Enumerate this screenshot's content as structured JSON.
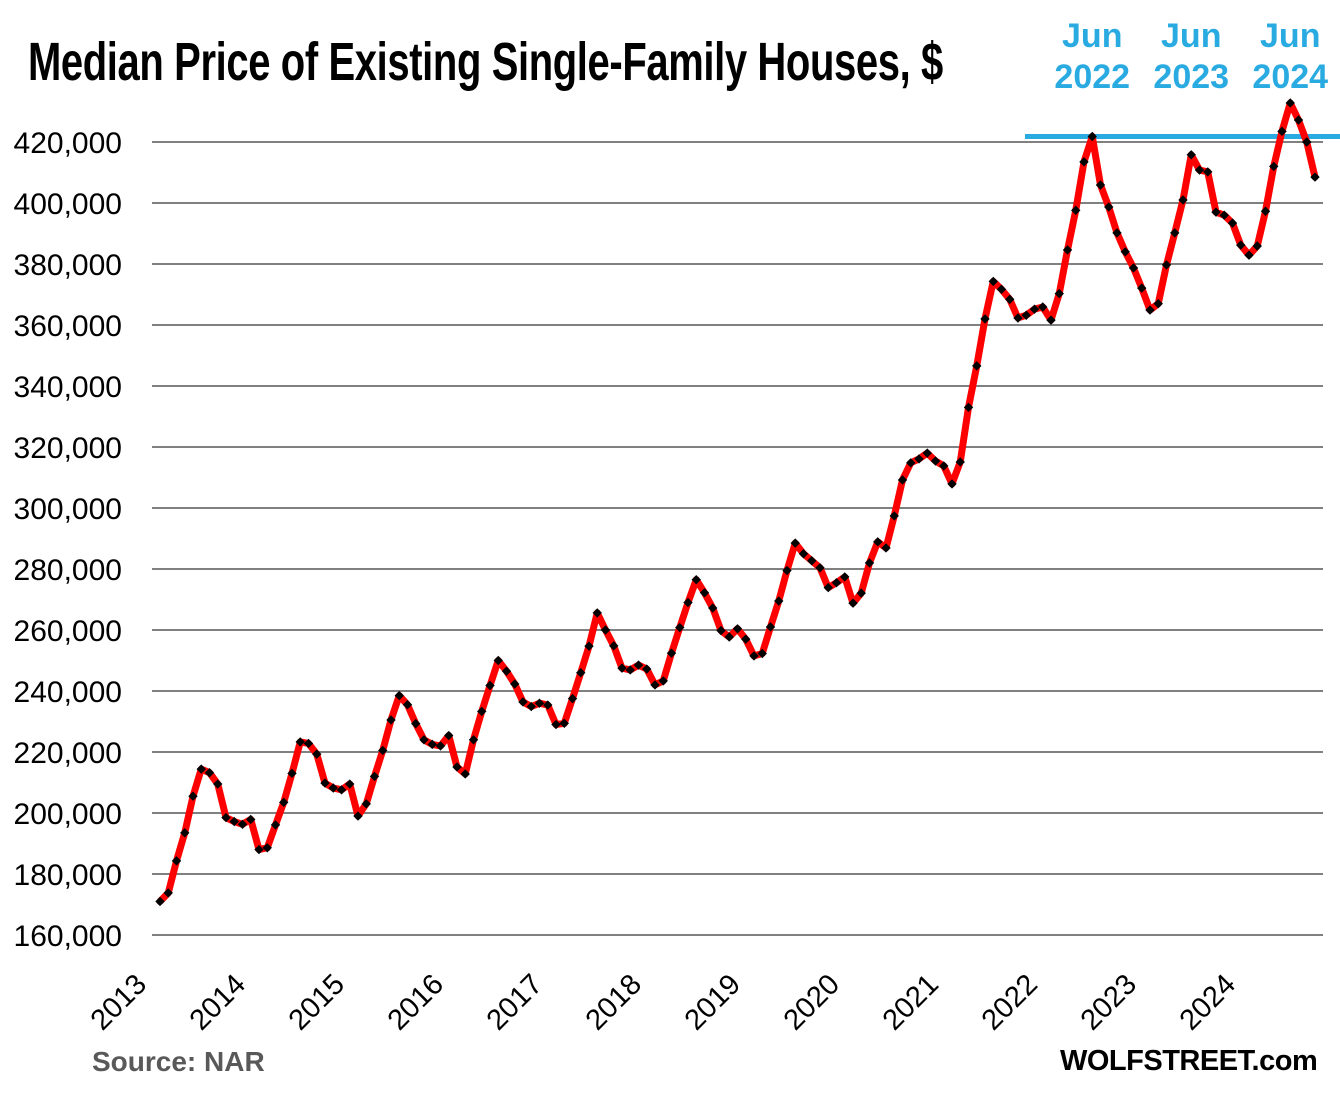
{
  "title": "Median Price of Existing Single-Family Houses, $",
  "source_note": "Source: NAR",
  "watermark": "WOLFSTREET.com",
  "annotations": [
    {
      "line1": "Jun",
      "line2": "2022",
      "month_index": 113
    },
    {
      "line1": "Jun",
      "line2": "2023",
      "month_index": 125
    },
    {
      "line1": "Jun",
      "line2": "2024",
      "month_index": 137
    }
  ],
  "colors": {
    "line": "#FF0000",
    "marker": "#000000",
    "annotation_blue": "#29ABE2",
    "grid": "#808080",
    "source_text": "#595959",
    "title_text": "#000000"
  },
  "chart_data": {
    "type": "line",
    "title": "Median Price of Existing Single-Family Houses, $",
    "frequency": "monthly",
    "x_start": "2013-01",
    "x_end": "2024-09",
    "x_tick_years": [
      2013,
      2014,
      2015,
      2016,
      2017,
      2018,
      2019,
      2020,
      2021,
      2022,
      2023,
      2024
    ],
    "y_ticks": [
      160000,
      180000,
      200000,
      220000,
      240000,
      260000,
      280000,
      300000,
      320000,
      340000,
      360000,
      380000,
      400000,
      420000
    ],
    "ylim": [
      160000,
      420000
    ],
    "grid": true,
    "reference_line": {
      "value": 421800,
      "color": "#29ABE2"
    },
    "series": [
      {
        "name": "Median price of existing single-family houses, $",
        "values": [
          171000,
          173800,
          184300,
          193500,
          205500,
          214400,
          213200,
          209500,
          198500,
          197200,
          196300,
          197900,
          188000,
          188600,
          196100,
          203500,
          213000,
          223300,
          222800,
          219300,
          209800,
          208200,
          207600,
          209500,
          199000,
          203000,
          212000,
          220500,
          230500,
          238500,
          235500,
          229300,
          224000,
          222500,
          222000,
          225400,
          215100,
          212800,
          224000,
          233300,
          241800,
          250000,
          246500,
          242300,
          236400,
          234900,
          236000,
          235400,
          229000,
          229400,
          237500,
          246000,
          254700,
          265600,
          260000,
          254800,
          247500,
          246900,
          248500,
          247200,
          242000,
          243300,
          252400,
          260800,
          269000,
          276500,
          272200,
          267200,
          259800,
          257700,
          260400,
          257000,
          251500,
          252300,
          261000,
          269500,
          279500,
          288500,
          285000,
          282700,
          280400,
          273900,
          275500,
          277400,
          268800,
          272100,
          282000,
          288900,
          286900,
          297400,
          309200,
          314800,
          316100,
          318000,
          315400,
          313800,
          307900,
          315100,
          333000,
          346600,
          362000,
          374300,
          371700,
          368400,
          362300,
          363200,
          365200,
          365900,
          361600,
          370300,
          384600,
          397600,
          413500,
          421800,
          405900,
          398700,
          390200,
          384000,
          378700,
          372100,
          364900,
          367000,
          379700,
          390200,
          401000,
          415800,
          410800,
          410200,
          397000,
          396000,
          393400,
          386200,
          382900,
          385900,
          397300,
          412000,
          423500,
          432800,
          427200,
          420000,
          408500
        ]
      }
    ]
  }
}
